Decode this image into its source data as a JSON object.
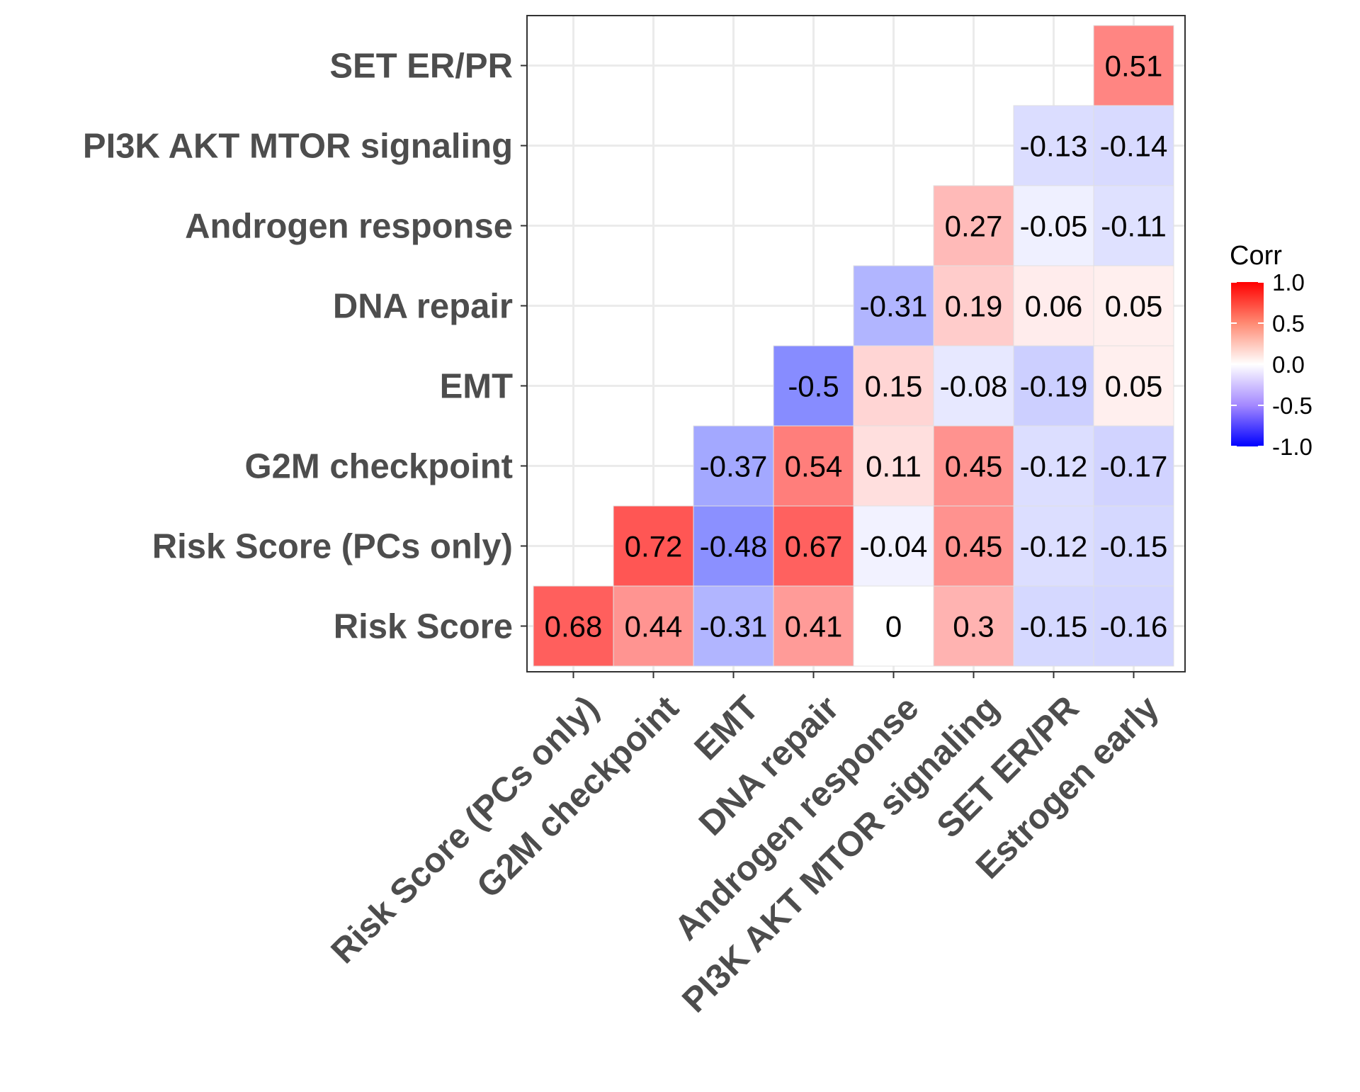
{
  "chart_data": {
    "type": "heatmap",
    "title": "",
    "xlabel": "",
    "ylabel": "",
    "x_categories": [
      "Risk Score (PCs only)",
      "G2M checkpoint",
      "EMT",
      "DNA repair",
      "Androgen response",
      "PI3K AKT MTOR signaling",
      "SET ER/PR",
      "Estrogen early"
    ],
    "y_categories": [
      "Risk Score",
      "Risk Score (PCs only)",
      "G2M checkpoint",
      "EMT",
      "DNA repair",
      "Androgen response",
      "PI3K AKT MTOR signaling",
      "SET ER/PR"
    ],
    "cells": [
      {
        "x": "Risk Score (PCs only)",
        "y": "Risk Score",
        "value": 0.68,
        "label": "0.68"
      },
      {
        "x": "G2M checkpoint",
        "y": "Risk Score",
        "value": 0.44,
        "label": "0.44"
      },
      {
        "x": "EMT",
        "y": "Risk Score",
        "value": -0.31,
        "label": "-0.31"
      },
      {
        "x": "DNA repair",
        "y": "Risk Score",
        "value": 0.41,
        "label": "0.41"
      },
      {
        "x": "Androgen response",
        "y": "Risk Score",
        "value": 0,
        "label": "0"
      },
      {
        "x": "PI3K AKT MTOR signaling",
        "y": "Risk Score",
        "value": 0.3,
        "label": "0.3"
      },
      {
        "x": "SET ER/PR",
        "y": "Risk Score",
        "value": -0.15,
        "label": "-0.15"
      },
      {
        "x": "Estrogen early",
        "y": "Risk Score",
        "value": -0.16,
        "label": "-0.16"
      },
      {
        "x": "G2M checkpoint",
        "y": "Risk Score (PCs only)",
        "value": 0.72,
        "label": "0.72"
      },
      {
        "x": "EMT",
        "y": "Risk Score (PCs only)",
        "value": -0.48,
        "label": "-0.48"
      },
      {
        "x": "DNA repair",
        "y": "Risk Score (PCs only)",
        "value": 0.67,
        "label": "0.67"
      },
      {
        "x": "Androgen response",
        "y": "Risk Score (PCs only)",
        "value": -0.04,
        "label": "-0.04"
      },
      {
        "x": "PI3K AKT MTOR signaling",
        "y": "Risk Score (PCs only)",
        "value": 0.45,
        "label": "0.45"
      },
      {
        "x": "SET ER/PR",
        "y": "Risk Score (PCs only)",
        "value": -0.12,
        "label": "-0.12"
      },
      {
        "x": "Estrogen early",
        "y": "Risk Score (PCs only)",
        "value": -0.15,
        "label": "-0.15"
      },
      {
        "x": "EMT",
        "y": "G2M checkpoint",
        "value": -0.37,
        "label": "-0.37"
      },
      {
        "x": "DNA repair",
        "y": "G2M checkpoint",
        "value": 0.54,
        "label": "0.54"
      },
      {
        "x": "Androgen response",
        "y": "G2M checkpoint",
        "value": 0.11,
        "label": "0.11"
      },
      {
        "x": "PI3K AKT MTOR signaling",
        "y": "G2M checkpoint",
        "value": 0.45,
        "label": "0.45"
      },
      {
        "x": "SET ER/PR",
        "y": "G2M checkpoint",
        "value": -0.12,
        "label": "-0.12"
      },
      {
        "x": "Estrogen early",
        "y": "G2M checkpoint",
        "value": -0.17,
        "label": "-0.17"
      },
      {
        "x": "DNA repair",
        "y": "EMT",
        "value": -0.5,
        "label": "-0.5"
      },
      {
        "x": "Androgen response",
        "y": "EMT",
        "value": 0.15,
        "label": "0.15"
      },
      {
        "x": "PI3K AKT MTOR signaling",
        "y": "EMT",
        "value": -0.08,
        "label": "-0.08"
      },
      {
        "x": "SET ER/PR",
        "y": "EMT",
        "value": -0.19,
        "label": "-0.19"
      },
      {
        "x": "Estrogen early",
        "y": "EMT",
        "value": 0.05,
        "label": "0.05"
      },
      {
        "x": "Androgen response",
        "y": "DNA repair",
        "value": -0.31,
        "label": "-0.31"
      },
      {
        "x": "PI3K AKT MTOR signaling",
        "y": "DNA repair",
        "value": 0.19,
        "label": "0.19"
      },
      {
        "x": "SET ER/PR",
        "y": "DNA repair",
        "value": 0.06,
        "label": "0.06"
      },
      {
        "x": "Estrogen early",
        "y": "DNA repair",
        "value": 0.05,
        "label": "0.05"
      },
      {
        "x": "PI3K AKT MTOR signaling",
        "y": "Androgen response",
        "value": 0.27,
        "label": "0.27"
      },
      {
        "x": "SET ER/PR",
        "y": "Androgen response",
        "value": -0.05,
        "label": "-0.05"
      },
      {
        "x": "Estrogen early",
        "y": "Androgen response",
        "value": -0.11,
        "label": "-0.11"
      },
      {
        "x": "SET ER/PR",
        "y": "PI3K AKT MTOR signaling",
        "value": -0.13,
        "label": "-0.13"
      },
      {
        "x": "Estrogen early",
        "y": "PI3K AKT MTOR signaling",
        "value": -0.14,
        "label": "-0.14"
      },
      {
        "x": "Estrogen early",
        "y": "SET ER/PR",
        "value": 0.51,
        "label": "0.51"
      }
    ],
    "color_scale": {
      "low": "#0000ff",
      "mid": "#ffffff",
      "high": "#ff0000",
      "limits": [
        -1,
        1
      ]
    },
    "legend": {
      "title": "Corr",
      "ticks": [
        "1.0",
        "0.5",
        "0.0",
        "-0.5",
        "-1.0"
      ],
      "tick_values": [
        1.0,
        0.5,
        0.0,
        -0.5,
        -1.0
      ],
      "placement": "right"
    },
    "grid": true
  }
}
